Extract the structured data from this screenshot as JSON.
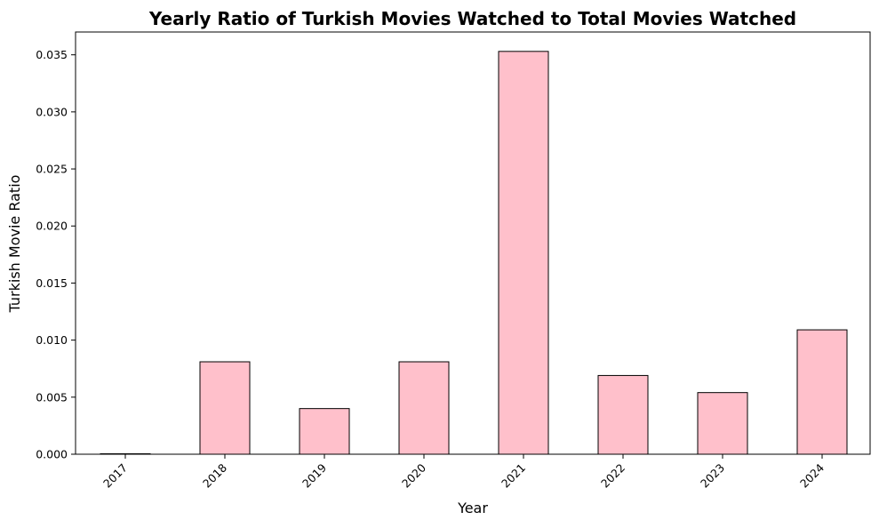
{
  "chart_data": {
    "type": "bar",
    "title": "Yearly Ratio of Turkish Movies Watched to Total Movies Watched",
    "xlabel": "Year",
    "ylabel": "Turkish Movie Ratio",
    "categories": [
      "2017",
      "2018",
      "2019",
      "2020",
      "2021",
      "2022",
      "2023",
      "2024"
    ],
    "values": [
      0.0,
      0.0081,
      0.004,
      0.0081,
      0.0353,
      0.0069,
      0.0054,
      0.0109
    ],
    "ylim": [
      0,
      0.037
    ],
    "yticks": [
      0.0,
      0.005,
      0.01,
      0.015,
      0.02,
      0.025,
      0.03,
      0.035
    ],
    "ytick_labels": [
      "0.000",
      "0.005",
      "0.010",
      "0.015",
      "0.020",
      "0.025",
      "0.030",
      "0.035"
    ],
    "grid": false,
    "legend": "none",
    "bar_color": "#ffc0cb",
    "bar_edge_color": "#000000"
  }
}
